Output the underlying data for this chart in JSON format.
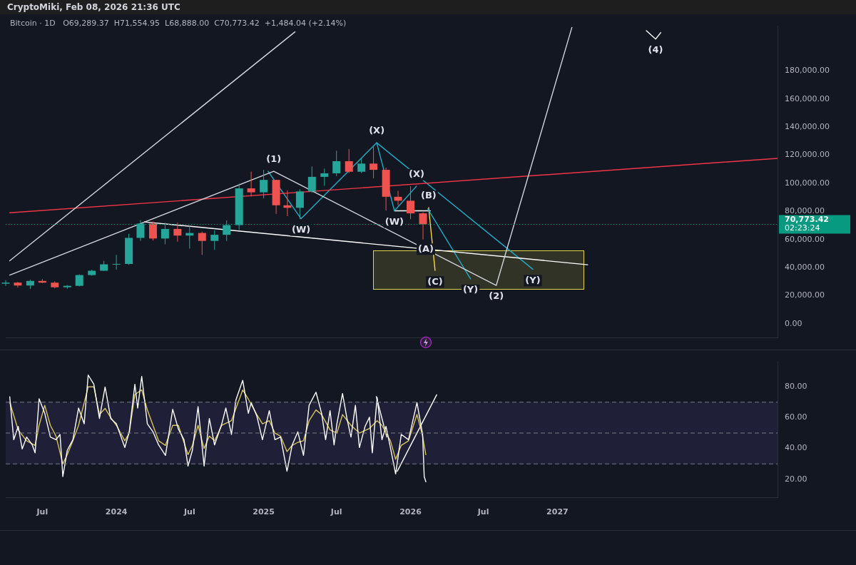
{
  "chart_data": [
    {
      "type": "candlestick",
      "title": "CryptoMiki, Feb 08, 2026 21:36 UTC",
      "subtitle": "Bitcoin · 1D   O69,289.37  H71,554.95  L68,888.00  C70,773.42  +1,484.04 (+2.14%)",
      "x": [
        "2023-04",
        "2023-05",
        "2023-06",
        "2023-07",
        "2023-08",
        "2023-09",
        "2023-10",
        "2023-11",
        "2023-12",
        "2024-01",
        "2024-02",
        "2024-03",
        "2024-04",
        "2024-05",
        "2024-06",
        "2024-07",
        "2024-08",
        "2024-09",
        "2024-10",
        "2024-11",
        "2024-12",
        "2025-01",
        "2025-02",
        "2025-03",
        "2025-04",
        "2025-05",
        "2025-06",
        "2025-07",
        "2025-08",
        "2025-09",
        "2025-10",
        "2025-11",
        "2025-12",
        "2026-01",
        "2026-02"
      ],
      "ohlc": [
        [
          28470,
          31000,
          26950,
          29250
        ],
        [
          29250,
          29820,
          25800,
          27200
        ],
        [
          27200,
          31390,
          24800,
          30470
        ],
        [
          30470,
          31800,
          28860,
          29230
        ],
        [
          29230,
          30200,
          25170,
          25940
        ],
        [
          25940,
          27480,
          24900,
          26960
        ],
        [
          26960,
          35200,
          26550,
          34640
        ],
        [
          34640,
          38450,
          34100,
          37720
        ],
        [
          37720,
          44700,
          37600,
          42280
        ],
        [
          42280,
          48970,
          38550,
          42580
        ],
        [
          42580,
          64000,
          41880,
          61130
        ],
        [
          61130,
          73780,
          59000,
          71290
        ],
        [
          71290,
          72800,
          59190,
          60670
        ],
        [
          60670,
          71980,
          56550,
          67490
        ],
        [
          67490,
          71950,
          58400,
          62770
        ],
        [
          62770,
          70000,
          53500,
          64620
        ],
        [
          64620,
          65600,
          49000,
          58970
        ],
        [
          58970,
          66500,
          52550,
          63330
        ],
        [
          63330,
          73600,
          58900,
          70220
        ],
        [
          70220,
          99800,
          66800,
          96410
        ],
        [
          96410,
          108350,
          90500,
          93580
        ],
        [
          93580,
          109590,
          89250,
          102430
        ],
        [
          102430,
          102500,
          78200,
          84350
        ],
        [
          84350,
          95000,
          76600,
          82550
        ],
        [
          82550,
          95750,
          74500,
          94200
        ],
        [
          94200,
          111980,
          93400,
          104600
        ],
        [
          104600,
          110530,
          98200,
          107130
        ],
        [
          107130,
          123200,
          105100,
          115760
        ],
        [
          115760,
          124470,
          107300,
          108250
        ],
        [
          108250,
          117900,
          107250,
          114050
        ],
        [
          114050,
          126200,
          103500,
          109600
        ],
        [
          109600,
          111200,
          80600,
          90400
        ],
        [
          90400,
          94600,
          84400,
          87600
        ],
        [
          87600,
          97900,
          74500,
          78600
        ],
        [
          78600,
          79300,
          60000,
          70773.42
        ]
      ],
      "colors": [
        "#26a69a",
        "#ef5350",
        "#26a69a",
        "#ef5350",
        "#ef5350",
        "#26a69a",
        "#26a69a",
        "#26a69a",
        "#26a69a",
        "#26a69a",
        "#26a69a",
        "#26a69a",
        "#ef5350",
        "#26a69a",
        "#ef5350",
        "#26a69a",
        "#ef5350",
        "#26a69a",
        "#26a69a",
        "#26a69a",
        "#ef5350",
        "#26a69a",
        "#ef5350",
        "#ef5350",
        "#26a69a",
        "#26a69a",
        "#26a69a",
        "#26a69a",
        "#ef5350",
        "#26a69a",
        "#ef5350",
        "#ef5350",
        "#ef5350",
        "#ef5350",
        "#ef5350"
      ],
      "series": [
        {
          "type": "line",
          "color": "#d1d4dc",
          "x": [
            "2023-04-11",
            "2025-03-20"
          ],
          "values": [
            44800,
            207900
          ]
        },
        {
          "type": "line",
          "color": "#d1d4dc",
          "x": [
            "2023-04-11",
            "2025-01-26",
            "2026-08-02",
            "2027-02-06"
          ],
          "values": [
            34600,
            108600,
            27300,
            211100
          ]
        },
        {
          "type": "line",
          "color": "#ffffff",
          "x": [
            "2027-08-10",
            "2027-09-02",
            "2027-09-15"
          ],
          "values": [
            208800,
            202800,
            207400
          ]
        },
        {
          "type": "line",
          "color": "#ffffff",
          "x": [
            "2024-03-11",
            "2027-03-17"
          ],
          "values": [
            72500,
            42000
          ]
        },
        {
          "type": "line",
          "color": "#f23645",
          "x": [
            "2023-04-11",
            "2028-07-01"
          ],
          "values": [
            79000,
            117800
          ]
        },
        {
          "type": "line",
          "color": "#22a9c4",
          "x": [
            "2025-01-12",
            "2025-04-04",
            "2025-10-09",
            "2025-11-22",
            "2026-01-16"
          ],
          "values": [
            108600,
            74800,
            128900,
            80400,
            98000
          ]
        },
        {
          "type": "line",
          "color": "#22a9c4",
          "x": [
            "2025-10-09",
            "2026-11-01"
          ],
          "values": [
            128900,
            38800
          ]
        },
        {
          "type": "line",
          "color": "#22a9c4",
          "x": [
            "2026-02-13",
            "2026-05-30"
          ],
          "values": [
            81800,
            31900
          ]
        },
        {
          "type": "line",
          "color": "#f5d742",
          "x": [
            "2026-02-15",
            "2026-03-03"
          ],
          "values": [
            82700,
            37900
          ]
        },
        {
          "type": "line",
          "color": "#ffffff",
          "x": [
            "2025-11-22",
            "2026-02-19"
          ],
          "values": [
            80400,
            80400
          ]
        }
      ],
      "annotations": [
        {
          "text": "(1)",
          "x": "2025-01-26",
          "y": 108600
        },
        {
          "text": "(X)",
          "x": "2025-10-09",
          "y": 128900
        },
        {
          "text": "(X)",
          "x": "2026-01-16",
          "y": 98000
        },
        {
          "text": "(B)",
          "x": "2026-02-15",
          "y": 82700
        },
        {
          "text": "(W)",
          "x": "2025-04-04",
          "y": 74800
        },
        {
          "text": "(W)",
          "x": "2025-11-22",
          "y": 80400
        },
        {
          "text": "(A)",
          "x": "2026-02-08",
          "y": 53100
        },
        {
          "text": "(C)",
          "x": "2026-03-03",
          "y": 37900
        },
        {
          "text": "(Y)",
          "x": "2026-05-30",
          "y": 31900
        },
        {
          "text": "(2)",
          "x": "2026-08-02",
          "y": 27300
        },
        {
          "text": "(Y)",
          "x": "2026-11-01",
          "y": 38800
        },
        {
          "text": "(4)",
          "x": "2027-09-02",
          "y": 202800
        },
        "02:23:24"
      ],
      "ref_lines": [
        {
          "axis": "y",
          "value": 70773.42,
          "label": "70,773.42",
          "color": "#089981",
          "line_style": "dotted"
        }
      ],
      "xlim": [
        "2023-04-01",
        "2028-07-01"
      ],
      "ylim": [
        -10000,
        212000
      ],
      "yticks": [
        {
          "value": 0,
          "label": "0.00"
        },
        {
          "value": 20000,
          "label": "20,000.00"
        },
        {
          "value": 40000,
          "label": "40,000.00"
        },
        {
          "value": 60000,
          "label": "60,000.00"
        },
        {
          "value": 80000,
          "label": "80,000.00"
        },
        {
          "value": 100000,
          "label": "100,000.00"
        },
        {
          "value": 120000,
          "label": "120,000.00"
        },
        {
          "value": 140000,
          "label": "140,000.00"
        },
        {
          "value": 160000,
          "label": "160,000.00"
        },
        {
          "value": 180000,
          "label": "180,000.00"
        }
      ],
      "tick_labels": "y",
      "marker": "none",
      "line_style": "solid",
      "grid": false,
      "legend": false
    },
    {
      "type": "line",
      "series": [
        {
          "color": "#ffffff",
          "x": [
            "2023-04-11",
            "2023-04-21",
            "2023-05-02",
            "2023-05-12",
            "2023-05-23",
            "2023-06-06",
            "2023-06-13",
            "2023-06-23",
            "2023-07-07",
            "2023-07-21",
            "2023-08-04",
            "2023-08-14",
            "2023-08-21",
            "2023-09-01",
            "2023-09-15",
            "2023-09-29",
            "2023-10-13",
            "2023-10-23",
            "2023-11-06",
            "2023-11-20",
            "2023-12-04",
            "2023-12-18",
            "2024-01-01",
            "2024-01-15",
            "2024-01-22",
            "2024-02-02",
            "2024-02-16",
            "2024-02-23",
            "2024-03-04",
            "2024-03-18",
            "2024-04-01",
            "2024-04-15",
            "2024-05-02",
            "2024-05-20",
            "2024-06-03",
            "2024-06-17",
            "2024-06-27",
            "2024-07-08",
            "2024-07-22",
            "2024-08-06",
            "2024-08-19",
            "2024-09-01",
            "2024-09-19",
            "2024-09-29",
            "2024-10-13",
            "2024-10-24",
            "2024-11-10",
            "2024-11-24",
            "2024-12-01",
            "2024-12-15",
            "2024-12-29",
            "2025-01-15",
            "2025-01-29",
            "2025-02-12",
            "2025-02-28",
            "2025-03-13",
            "2025-03-27",
            "2025-04-10",
            "2025-04-24",
            "2025-05-11",
            "2025-05-25",
            "2025-06-04",
            "2025-06-15",
            "2025-06-25",
            "2025-07-02",
            "2025-07-16",
            "2025-07-27",
            "2025-08-06",
            "2025-08-17",
            "2025-08-27",
            "2025-09-10",
            "2025-09-21",
            "2025-09-28",
            "2025-10-10",
            "2025-10-22",
            "2025-11-01",
            "2025-11-12",
            "2025-11-25",
            "2025-12-09",
            "2025-12-27",
            "2026-01-17",
            "2026-01-31",
            "2026-02-04",
            "2026-02-08"
          ],
          "values": [
            73.5,
            45.7,
            54.3,
            39.7,
            47.4,
            42.3,
            37.2,
            72.2,
            62.8,
            47.4,
            45.7,
            49.1,
            21.8,
            38.9,
            45.7,
            66.2,
            56,
            87.6,
            81.6,
            59.4,
            79.9,
            59.4,
            56,
            45.7,
            40.6,
            50.8,
            81.6,
            66.2,
            86.8,
            56,
            50.8,
            42.3,
            35.5,
            65.4,
            52.6,
            45.7,
            28.6,
            38.9,
            67.1,
            28.6,
            59.4,
            42.3,
            56,
            66.2,
            49.1,
            71.4,
            84.2,
            62.8,
            69.7,
            61.1,
            45.7,
            64.5,
            45.7,
            47.4,
            25.2,
            42.3,
            50.8,
            35.5,
            68,
            76.5,
            62.8,
            45.7,
            64.5,
            42.3,
            56,
            75.6,
            59.4,
            47.4,
            68,
            40.6,
            54.3,
            60.3,
            37.2,
            73.1,
            45.7,
            54.3,
            40.6,
            23.5,
            49.1,
            45.7,
            69.7,
            49.1,
            21.8,
            18.4
          ]
        },
        {
          "color": "#d8c45a",
          "x": [
            "2023-04-11",
            "2023-05-02",
            "2023-05-23",
            "2023-06-13",
            "2023-06-23",
            "2023-07-07",
            "2023-07-21",
            "2023-08-04",
            "2023-08-21",
            "2023-09-01",
            "2023-09-15",
            "2023-09-29",
            "2023-10-23",
            "2023-11-06",
            "2023-11-20",
            "2023-12-04",
            "2023-12-18",
            "2024-01-01",
            "2024-01-22",
            "2024-02-02",
            "2024-02-16",
            "2024-03-04",
            "2024-03-18",
            "2024-04-01",
            "2024-04-15",
            "2024-05-02",
            "2024-05-20",
            "2024-06-03",
            "2024-06-27",
            "2024-07-08",
            "2024-07-22",
            "2024-08-06",
            "2024-08-19",
            "2024-09-01",
            "2024-09-19",
            "2024-10-13",
            "2024-11-10",
            "2024-11-24",
            "2024-12-15",
            "2024-12-29",
            "2025-01-15",
            "2025-01-29",
            "2025-02-12",
            "2025-02-28",
            "2025-03-13",
            "2025-03-27",
            "2025-04-10",
            "2025-04-24",
            "2025-05-11",
            "2025-05-25",
            "2025-06-15",
            "2025-07-02",
            "2025-07-16",
            "2025-08-06",
            "2025-08-27",
            "2025-09-21",
            "2025-10-10",
            "2025-10-22",
            "2025-11-12",
            "2025-11-25",
            "2025-12-09",
            "2025-12-27",
            "2026-01-17",
            "2026-01-31",
            "2026-02-08"
          ],
          "values": [
            70,
            52,
            45,
            42,
            55,
            68,
            55,
            48,
            30,
            36,
            45,
            55,
            80,
            80,
            62,
            66,
            60,
            55,
            45,
            50,
            75,
            78,
            65,
            55,
            45,
            42,
            55,
            55,
            36,
            42,
            55,
            40,
            48,
            45,
            55,
            58,
            78,
            72,
            62,
            56,
            58,
            50,
            48,
            38,
            42,
            44,
            45,
            58,
            65,
            62,
            52,
            50,
            62,
            55,
            50,
            53,
            58,
            55,
            45,
            33,
            42,
            45,
            62,
            48,
            36
          ]
        },
        {
          "color": "#ffffff",
          "x": [
            "2025-10-08",
            "2025-11-03"
          ],
          "values": [
            73.6,
            47.4
          ]
        },
        {
          "color": "#ffffff",
          "x": [
            "2025-11-29",
            "2026-03-07"
          ],
          "values": [
            25.2,
            74.8
          ]
        }
      ],
      "bands": [
        {
          "axis": "y",
          "from": 30,
          "to": 70,
          "color": "#1f1f38"
        }
      ],
      "ref_lines": [
        {
          "axis": "y",
          "value": 70,
          "color": "#787b86",
          "line_style": "dashed"
        },
        {
          "axis": "y",
          "value": 50,
          "color": "#787b86",
          "line_style": "dashed"
        },
        {
          "axis": "y",
          "value": 30,
          "color": "#787b86",
          "line_style": "dashed"
        }
      ],
      "xlim": [
        "2023-04-01",
        "2028-07-01"
      ],
      "xticks": [
        {
          "value": "2023-07-01",
          "label": "Jul"
        },
        {
          "value": "2024-01-01",
          "label": "2024"
        },
        {
          "value": "2024-07-01",
          "label": "Jul"
        },
        {
          "value": "2025-01-01",
          "label": "2025"
        },
        {
          "value": "2025-07-01",
          "label": "Jul"
        },
        {
          "value": "2026-01-01",
          "label": "2026"
        },
        {
          "value": "2026-07-01",
          "label": "Jul"
        },
        {
          "value": "2027-01-01",
          "label": "2027"
        }
      ],
      "ylim": [
        8,
        96
      ],
      "yticks": [
        {
          "value": 20,
          "label": "20.00"
        },
        {
          "value": 40,
          "label": "40.00"
        },
        {
          "value": 60,
          "label": "60.00"
        },
        {
          "value": 80,
          "label": "80.00"
        }
      ],
      "marker": "none",
      "line_style": "solid",
      "grid": false,
      "legend": false
    }
  ]
}
